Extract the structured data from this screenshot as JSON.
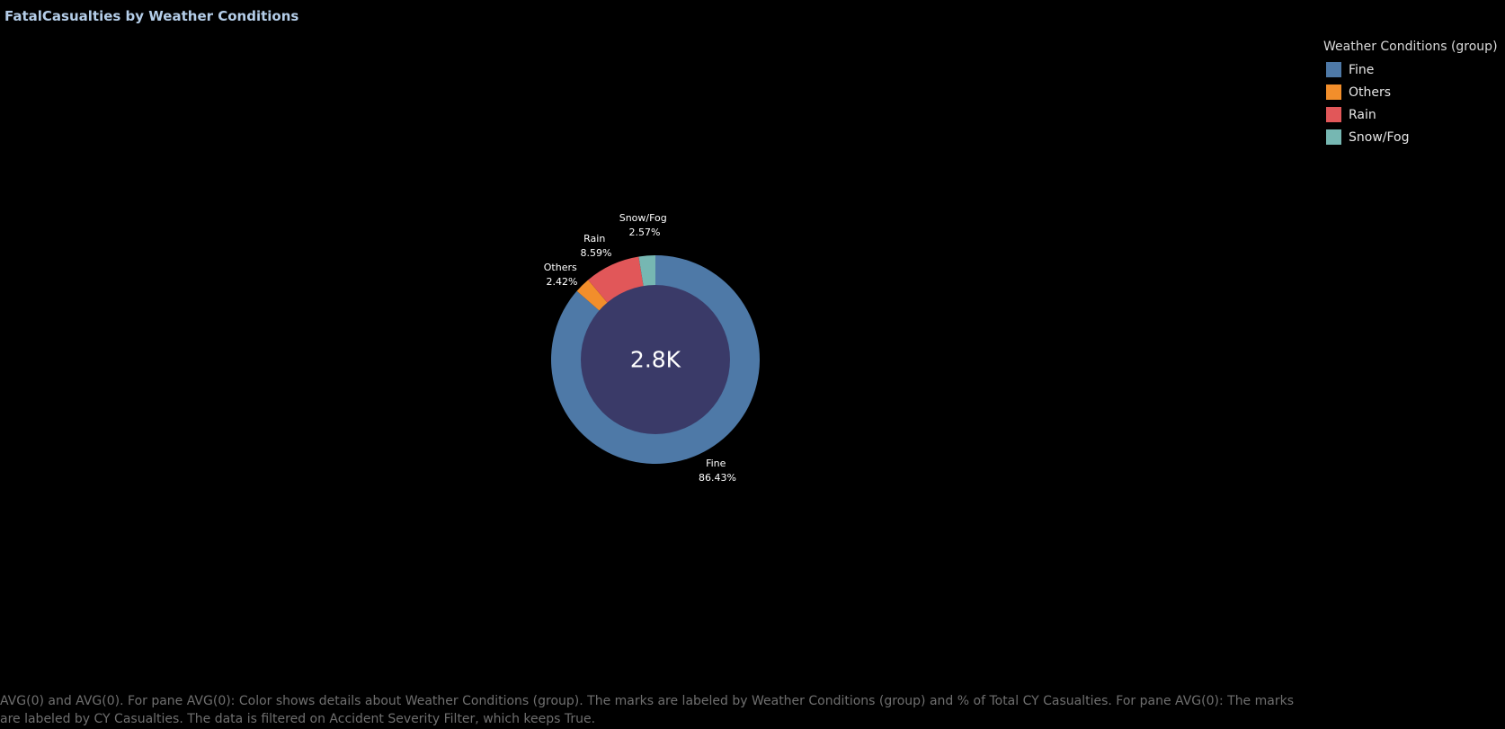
{
  "title": "FatalCasualties by Weather Conditions",
  "legend": {
    "title": "Weather Conditions (group)",
    "items": [
      {
        "label": "Fine",
        "color": "#4e79a7"
      },
      {
        "label": "Others",
        "color": "#f28e2b"
      },
      {
        "label": "Rain",
        "color": "#e15759"
      },
      {
        "label": "Snow/Fog",
        "color": "#76b7b2"
      }
    ]
  },
  "chart_data": {
    "type": "pie",
    "subtype": "donut",
    "center_label": "2.8K",
    "center_color": "#3a3a68",
    "start": "Fine slice begins at 12 o'clock, clockwise",
    "slices": [
      {
        "label": "Fine",
        "percent_label": "86.43%",
        "value": 86.43,
        "color": "#4e79a7"
      },
      {
        "label": "Others",
        "percent_label": "2.42%",
        "value": 2.42,
        "color": "#f28e2b"
      },
      {
        "label": "Rain",
        "percent_label": "8.59%",
        "value": 8.59,
        "color": "#e15759"
      },
      {
        "label": "Snow/Fog",
        "percent_label": "2.57%",
        "value": 2.57,
        "color": "#76b7b2"
      }
    ]
  },
  "caption": "AVG(0) and AVG(0).  For pane AVG(0):  Color shows details about Weather Conditions (group).  The marks are labeled by Weather Conditions (group) and % of Total CY Casualties.  For pane AVG(0):  The marks are labeled by CY Casualties. The data is filtered on Accident Severity Filter, which keeps True."
}
